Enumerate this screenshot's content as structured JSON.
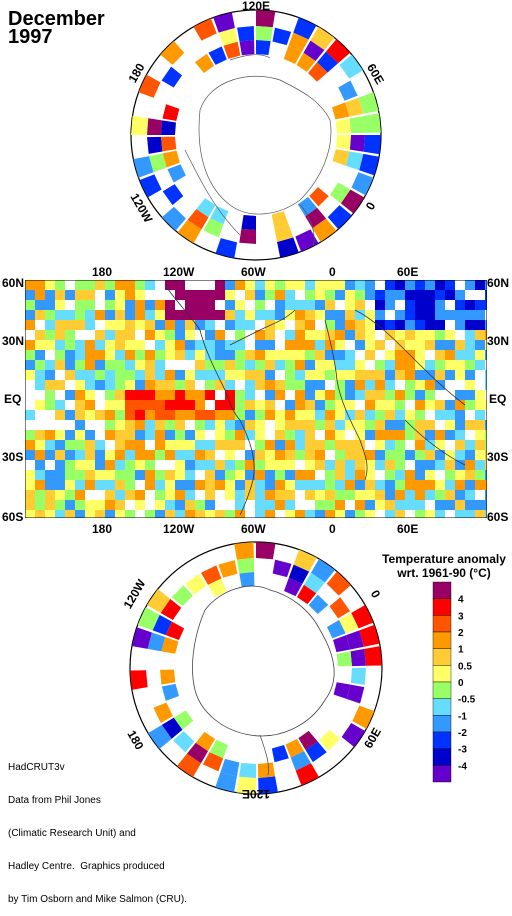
{
  "title": {
    "month": "December",
    "year": "1997"
  },
  "north_polar": {
    "labels": [
      "120E",
      "60E",
      "0",
      "120W",
      "180"
    ]
  },
  "map": {
    "top_lon_labels": [
      "180",
      "120W",
      "60W",
      "0",
      "60E"
    ],
    "bottom_lon_labels": [
      "180",
      "120W",
      "60W",
      "0",
      "60E"
    ],
    "lat_labels": [
      "60N",
      "30N",
      "EQ",
      "30S",
      "60S"
    ]
  },
  "south_polar": {
    "labels": [
      "120W",
      "0",
      "180",
      "60E",
      "120E"
    ]
  },
  "legend": {
    "title_line1": "Temperature anomaly",
    "title_line2": "wrt. 1961-90  (°C)",
    "ticks": [
      "4",
      "3",
      "2",
      "1",
      "0.5",
      "0",
      "-0.5",
      "-1",
      "-2",
      "-3",
      "-4"
    ],
    "colors": [
      "#990066",
      "#ff0000",
      "#ff5500",
      "#ff9900",
      "#ffcc33",
      "#ffff66",
      "#99ff66",
      "#66ddff",
      "#3399ff",
      "#0033ff",
      "#0000cc",
      "#6600cc"
    ]
  },
  "credit": {
    "line1": "HadCRUT3v",
    "line2": "Data from Phil Jones",
    "line3": "(Climatic Research Unit) and",
    "line4": "Hadley Centre.  Graphics produced",
    "line5": "by Tim Osborn and Mike Salmon (CRU)."
  }
}
